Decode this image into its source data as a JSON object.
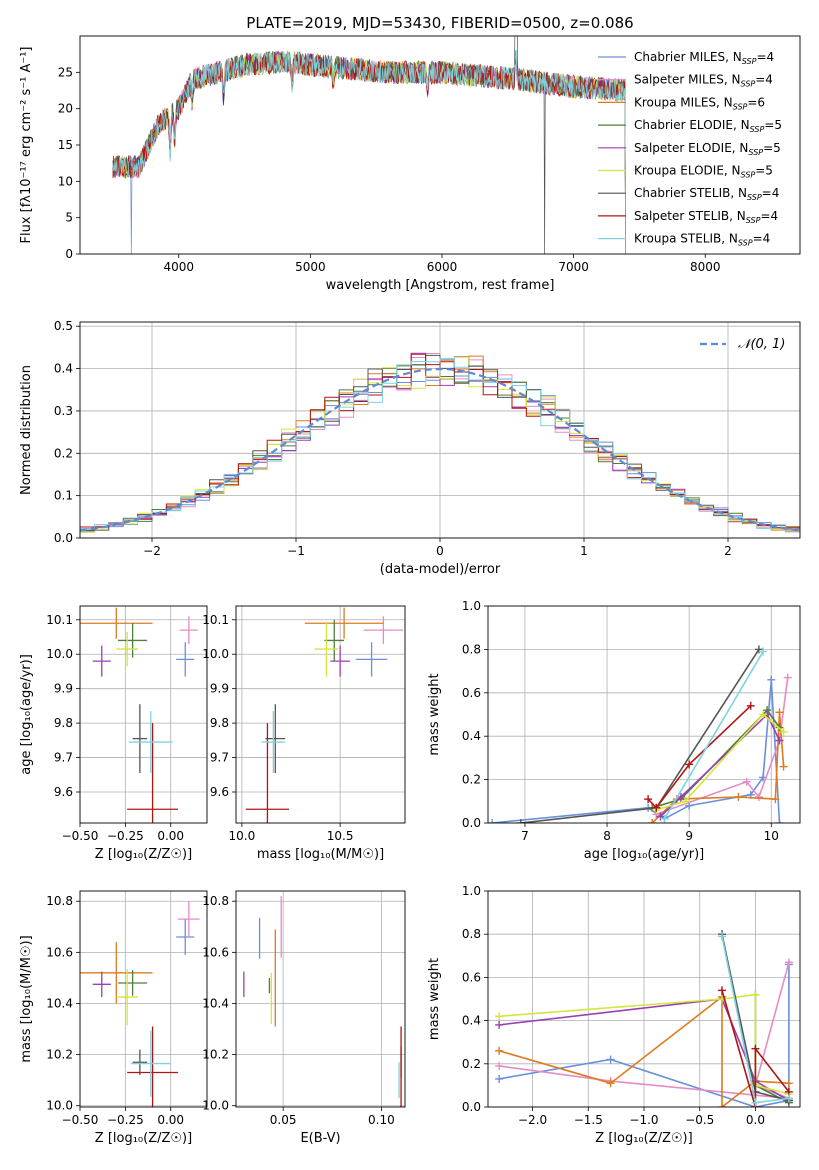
{
  "chart_data": [
    {
      "id": "spectrum",
      "type": "line",
      "title": "PLATE=2019, MJD=53430, FIBERID=0500, z=0.086",
      "xlabel": "wavelength [Angstrom, rest frame]",
      "ylabel": "Flux [fλ10⁻¹⁷ erg cm⁻² s⁻¹ A⁻¹]",
      "xlim": [
        3250,
        8720
      ],
      "ylim": [
        0,
        30
      ],
      "xticks": [
        4000,
        5000,
        6000,
        7000,
        8000
      ],
      "yticks": [
        0,
        5,
        10,
        15,
        20,
        25
      ],
      "legend_position": "upper-right",
      "series": [
        {
          "name": "Chabrier MILES, N_SSP=4",
          "color": "#6a8fdc"
        },
        {
          "name": "Salpeter MILES, N_SSP=4",
          "color": "#e58bc8"
        },
        {
          "name": "Kroupa MILES, N_SSP=6",
          "color": "#e07a1f"
        },
        {
          "name": "Chabrier ELODIE, N_SSP=5",
          "color": "#4f7f3a"
        },
        {
          "name": "Salpeter ELODIE, N_SSP=5",
          "color": "#9b3fb5"
        },
        {
          "name": "Kroupa ELODIE, N_SSP=5",
          "color": "#d4e63a"
        },
        {
          "name": "Chabrier STELIB, N_SSP=4",
          "color": "#555555"
        },
        {
          "name": "Salpeter STELIB, N_SSP=4",
          "color": "#b01515"
        },
        {
          "name": "Kroupa STELIB, N_SSP=4",
          "color": "#7fd3e0"
        }
      ],
      "continuum": {
        "x": [
          3500,
          3700,
          3850,
          4000,
          4100,
          4300,
          4500,
          4800,
          5000,
          5300,
          5600,
          6000,
          6300,
          6600,
          7000,
          7400
        ],
        "y": [
          12,
          12,
          18,
          20,
          24,
          25,
          26,
          26.5,
          26,
          25.5,
          25,
          25,
          24.5,
          24,
          23,
          22.5
        ]
      }
    },
    {
      "id": "residuals",
      "type": "histogram",
      "xlabel": "(data-model)/error",
      "ylabel": "Normed distribution",
      "xlim": [
        -2.5,
        2.5
      ],
      "ylim": [
        0,
        0.51
      ],
      "xticks": [
        -2,
        -1,
        0,
        1,
        2
      ],
      "yticks": [
        0.0,
        0.1,
        0.2,
        0.3,
        0.4,
        0.5
      ],
      "legend": "𝒩(0, 1)",
      "legend_color": "#5b8ad6",
      "bin_width": 0.1,
      "grid": true
    },
    {
      "id": "age-vs-Z",
      "type": "errorbar",
      "xlabel": "Z [log₁₀(Z/Z☉)]",
      "ylabel": "age  [log₁₀(age/yr)]",
      "xlim": [
        -0.5,
        0.2
      ],
      "ylim": [
        9.51,
        10.14
      ],
      "xticks": [
        -0.5,
        -0.25,
        0.0
      ],
      "yticks": [
        9.6,
        9.7,
        9.8,
        9.9,
        10.0,
        10.1
      ],
      "points": [
        {
          "x": 0.08,
          "y": 9.985,
          "xerr": 0.05,
          "yerr": 0.05,
          "color": "#6a8fdc"
        },
        {
          "x": 0.1,
          "y": 10.07,
          "xerr": 0.05,
          "yerr": 0.04,
          "color": "#e58bc8"
        },
        {
          "x": -0.3,
          "y": 10.09,
          "xerr": 0.2,
          "yerr": 0.045,
          "color": "#e07a1f"
        },
        {
          "x": -0.21,
          "y": 10.04,
          "xerr": 0.08,
          "yerr": 0.05,
          "color": "#4f7f3a"
        },
        {
          "x": -0.38,
          "y": 9.98,
          "xerr": 0.05,
          "yerr": 0.045,
          "color": "#9b3fb5"
        },
        {
          "x": -0.24,
          "y": 10.015,
          "xerr": 0.06,
          "yerr": 0.05,
          "color": "#d4e63a"
        },
        {
          "x": -0.17,
          "y": 9.755,
          "xerr": 0.04,
          "yerr": 0.1,
          "color": "#555555"
        },
        {
          "x": -0.1,
          "y": 9.55,
          "xerr": 0.14,
          "yerr": 0.25,
          "color": "#b01515"
        },
        {
          "x": -0.11,
          "y": 9.745,
          "xerr": 0.12,
          "yerr": 0.09,
          "color": "#7fd3e0"
        }
      ]
    },
    {
      "id": "age-vs-mass",
      "type": "errorbar",
      "xlabel": "mass [log₁₀(M/M☉)]",
      "ylabel": "",
      "xlim": [
        9.97,
        10.83
      ],
      "ylim": [
        9.51,
        10.14
      ],
      "xticks": [
        10.0,
        10.5
      ],
      "yticks": [
        9.6,
        9.7,
        9.8,
        9.9,
        10.0,
        10.1
      ],
      "points": [
        {
          "x": 10.66,
          "y": 9.985,
          "xerr": 0.08,
          "yerr": 0.05,
          "color": "#6a8fdc"
        },
        {
          "x": 10.72,
          "y": 10.07,
          "xerr": 0.1,
          "yerr": 0.04,
          "color": "#e58bc8"
        },
        {
          "x": 10.52,
          "y": 10.09,
          "xerr": 0.2,
          "yerr": 0.045,
          "color": "#e07a1f"
        },
        {
          "x": 10.47,
          "y": 10.04,
          "xerr": 0.05,
          "yerr": 0.06,
          "color": "#4f7f3a"
        },
        {
          "x": 10.5,
          "y": 9.98,
          "xerr": 0.05,
          "yerr": 0.045,
          "color": "#9b3fb5"
        },
        {
          "x": 10.43,
          "y": 10.015,
          "xerr": 0.06,
          "yerr": 0.08,
          "color": "#d4e63a"
        },
        {
          "x": 10.17,
          "y": 9.755,
          "xerr": 0.05,
          "yerr": 0.1,
          "color": "#555555"
        },
        {
          "x": 10.13,
          "y": 9.55,
          "xerr": 0.11,
          "yerr": 0.25,
          "color": "#b01515"
        },
        {
          "x": 10.16,
          "y": 9.745,
          "xerr": 0.06,
          "yerr": 0.09,
          "color": "#7fd3e0"
        }
      ]
    },
    {
      "id": "mass-weight-vs-age",
      "type": "line",
      "xlabel": "age  [log₁₀(age/yr)]",
      "ylabel": "mass weight",
      "xlim": [
        6.55,
        10.35
      ],
      "ylim": [
        0,
        1
      ],
      "xticks": [
        7,
        8,
        9,
        10
      ],
      "yticks": [
        0.0,
        0.2,
        0.4,
        0.6,
        0.8,
        1.0
      ],
      "grid": true,
      "series": [
        {
          "color": "#6a8fdc",
          "x": [
            6.6,
            8.5,
            8.7,
            9.0,
            9.75,
            9.9,
            10.0,
            10.1
          ],
          "y": [
            0.0,
            0.07,
            0.02,
            0.08,
            0.13,
            0.21,
            0.66,
            0.0
          ]
        },
        {
          "color": "#e58bc8",
          "x": [
            8.6,
            9.7,
            9.85,
            10.1,
            10.2
          ],
          "y": [
            0.04,
            0.19,
            0.12,
            0.38,
            0.67
          ]
        },
        {
          "color": "#e07a1f",
          "x": [
            8.55,
            8.85,
            9.6,
            10.05,
            10.1,
            10.15
          ],
          "y": [
            0.0,
            0.11,
            0.12,
            0.11,
            0.51,
            0.26
          ]
        },
        {
          "color": "#4f7f3a",
          "x": [
            8.55,
            8.9,
            9.95,
            10.1
          ],
          "y": [
            0.07,
            0.11,
            0.52,
            0.44
          ]
        },
        {
          "color": "#9b3fb5",
          "x": [
            8.65,
            8.9,
            9.95,
            10.1
          ],
          "y": [
            0.03,
            0.12,
            0.5,
            0.38
          ]
        },
        {
          "color": "#d4e63a",
          "x": [
            8.6,
            8.95,
            9.9,
            10.15
          ],
          "y": [
            0.06,
            0.1,
            0.5,
            0.42
          ]
        },
        {
          "color": "#555555",
          "x": [
            6.95,
            8.6,
            9.85
          ],
          "y": [
            0.0,
            0.07,
            0.8
          ]
        },
        {
          "color": "#b01515",
          "x": [
            8.5,
            8.6,
            9.0,
            9.75
          ],
          "y": [
            0.11,
            0.07,
            0.27,
            0.54
          ]
        },
        {
          "color": "#7fd3e0",
          "x": [
            8.7,
            9.9
          ],
          "y": [
            0.02,
            0.79
          ]
        }
      ]
    },
    {
      "id": "mass-vs-Z",
      "type": "errorbar",
      "xlabel": "Z [log₁₀(Z/Z☉)]",
      "ylabel": "mass [log₁₀(M/M☉)]",
      "xlim": [
        -0.5,
        0.2
      ],
      "ylim": [
        9.995,
        10.84
      ],
      "xticks": [
        -0.5,
        -0.25,
        0.0
      ],
      "yticks": [
        10.0,
        10.2,
        10.4,
        10.6,
        10.8
      ],
      "points": [
        {
          "x": 0.08,
          "y": 10.66,
          "xerr": 0.05,
          "yerr": 0.07,
          "color": "#6a8fdc"
        },
        {
          "x": 0.1,
          "y": 10.73,
          "xerr": 0.06,
          "yerr": 0.07,
          "color": "#e58bc8"
        },
        {
          "x": -0.3,
          "y": 10.52,
          "xerr": 0.2,
          "yerr": 0.12,
          "color": "#e07a1f"
        },
        {
          "x": -0.21,
          "y": 10.48,
          "xerr": 0.08,
          "yerr": 0.05,
          "color": "#4f7f3a"
        },
        {
          "x": -0.38,
          "y": 10.475,
          "xerr": 0.05,
          "yerr": 0.05,
          "color": "#9b3fb5"
        },
        {
          "x": -0.24,
          "y": 10.425,
          "xerr": 0.06,
          "yerr": 0.11,
          "color": "#d4e63a"
        },
        {
          "x": -0.17,
          "y": 10.17,
          "xerr": 0.04,
          "yerr": 0.05,
          "color": "#555555"
        },
        {
          "x": -0.1,
          "y": 10.13,
          "xerr": 0.14,
          "yerr": 0.18,
          "color": "#b01515"
        },
        {
          "x": -0.11,
          "y": 10.165,
          "xerr": 0.11,
          "yerr": 0.13,
          "color": "#7fd3e0"
        }
      ]
    },
    {
      "id": "mass-vs-ebv",
      "type": "errorbar",
      "xlabel": "E(B-V)",
      "ylabel": "",
      "xlim": [
        0.026,
        0.112
      ],
      "ylim": [
        9.995,
        10.84
      ],
      "xticks": [
        0.05,
        0.1
      ],
      "yticks": [
        10.0,
        10.2,
        10.4,
        10.6,
        10.8
      ],
      "points": [
        {
          "x": 0.038,
          "y": 10.655,
          "xerr": 0.0,
          "yerr": 0.08,
          "color": "#6a8fdc"
        },
        {
          "x": 0.049,
          "y": 10.7,
          "xerr": 0.0,
          "yerr": 0.12,
          "color": "#e58bc8"
        },
        {
          "x": 0.046,
          "y": 10.5,
          "xerr": 0.0,
          "yerr": 0.19,
          "color": "#e07a1f"
        },
        {
          "x": 0.043,
          "y": 10.47,
          "xerr": 0.0,
          "yerr": 0.03,
          "color": "#4f7f3a"
        },
        {
          "x": 0.03,
          "y": 10.475,
          "xerr": 0.0,
          "yerr": 0.05,
          "color": "#9b3fb5"
        },
        {
          "x": 0.044,
          "y": 10.42,
          "xerr": 0.0,
          "yerr": 0.1,
          "color": "#d4e63a"
        },
        {
          "x": 0.11,
          "y": 10.17,
          "xerr": 0.0,
          "yerr": 0.06,
          "color": "#555555"
        },
        {
          "x": 0.11,
          "y": 10.13,
          "xerr": 0.0,
          "yerr": 0.18,
          "color": "#b01515"
        },
        {
          "x": 0.109,
          "y": 10.1,
          "xerr": 0.0,
          "yerr": 0.07,
          "color": "#7fd3e0"
        }
      ]
    },
    {
      "id": "mass-weight-vs-Z",
      "type": "line",
      "xlabel": "Z [log₁₀(Z/Z☉)]",
      "ylabel": "mass weight",
      "xlim": [
        -2.4,
        0.4
      ],
      "ylim": [
        0,
        1
      ],
      "xticks": [
        -2.0,
        -1.5,
        -1.0,
        -0.5,
        0.0
      ],
      "yticks": [
        0.0,
        0.2,
        0.4,
        0.6,
        0.8,
        1.0
      ],
      "grid": true,
      "series": [
        {
          "color": "#6a8fdc",
          "x": [
            -2.3,
            -1.3,
            0.0,
            0.3,
            0.3
          ],
          "y": [
            0.13,
            0.22,
            0.0,
            0.03,
            0.66
          ]
        },
        {
          "color": "#e58bc8",
          "x": [
            -2.3,
            -1.3,
            0.3,
            0.0,
            0.3
          ],
          "y": [
            0.19,
            0.12,
            0.04,
            0.1,
            0.67
          ]
        },
        {
          "color": "#e07a1f",
          "x": [
            -2.3,
            -1.3,
            -0.3,
            -0.3,
            0.0,
            0.3
          ],
          "y": [
            0.26,
            0.11,
            0.51,
            0.0,
            0.12,
            0.11
          ]
        },
        {
          "color": "#4f7f3a",
          "x": [
            0.0,
            0.0,
            0.3
          ],
          "y": [
            0.52,
            0.1,
            0.02
          ]
        },
        {
          "color": "#9b3fb5",
          "x": [
            -2.3,
            -0.3,
            0.0,
            0.3
          ],
          "y": [
            0.38,
            0.5,
            0.12,
            0.03
          ]
        },
        {
          "color": "#d4e63a",
          "x": [
            -2.3,
            -0.3,
            0.0,
            0.0,
            0.3
          ],
          "y": [
            0.42,
            0.5,
            0.52,
            0.1,
            0.06
          ]
        },
        {
          "color": "#555555",
          "x": [
            -0.3,
            0.0,
            0.3
          ],
          "y": [
            0.8,
            0.07,
            0.03
          ]
        },
        {
          "color": "#b01515",
          "x": [
            -0.3,
            0.0,
            0.0,
            0.3
          ],
          "y": [
            0.54,
            0.0,
            0.27,
            0.07
          ]
        },
        {
          "color": "#7fd3e0",
          "x": [
            -0.3,
            0.0,
            0.3
          ],
          "y": [
            0.79,
            0.02,
            0.04
          ]
        }
      ]
    }
  ]
}
